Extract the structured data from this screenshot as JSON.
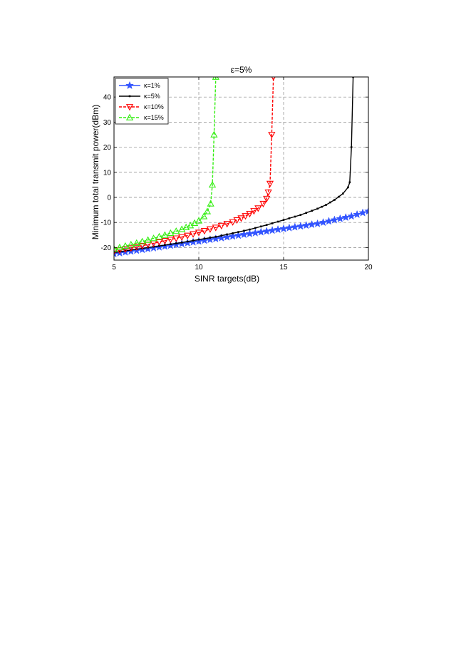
{
  "chart_data": {
    "type": "line",
    "title": "ε=5%",
    "xlabel": "SINR targets(dB)",
    "ylabel": "Minimum total transmit power(dBm)",
    "xlim": [
      5,
      20
    ],
    "ylim": [
      -25,
      48
    ],
    "xticks": [
      5,
      10,
      15,
      20
    ],
    "yticks": [
      -20,
      -10,
      0,
      10,
      20,
      30,
      40
    ],
    "grid": true,
    "legend_position": "top-left",
    "series": [
      {
        "name": "κ=1%",
        "color": "#3355ff",
        "linestyle": "solid",
        "marker": "star",
        "x": [
          5,
          6,
          7,
          8,
          9,
          10,
          11,
          12,
          13,
          14,
          15,
          16,
          17,
          18,
          19,
          20
        ],
        "y": [
          -22.5,
          -21.5,
          -20.5,
          -19.5,
          -18.5,
          -17.5,
          -16.5,
          -15.5,
          -14.5,
          -13.5,
          -12.5,
          -11.5,
          -10.5,
          -9.0,
          -7.5,
          -5.5
        ]
      },
      {
        "name": "κ=5%",
        "color": "#000000",
        "linestyle": "solid",
        "marker": "square",
        "x": [
          5,
          6,
          7,
          8,
          9,
          10,
          11,
          12,
          13,
          14,
          15,
          16,
          17,
          17.5,
          18,
          18.5,
          18.8,
          18.9,
          19.0,
          19.1
        ],
        "y": [
          -22.0,
          -21.0,
          -20.0,
          -19.0,
          -18.0,
          -16.8,
          -15.7,
          -14.3,
          -12.8,
          -11.0,
          -9.0,
          -7.0,
          -4.5,
          -3.0,
          -1.0,
          1.5,
          4.0,
          6.0,
          20.0,
          48.0
        ]
      },
      {
        "name": "κ=10%",
        "color": "#ff0000",
        "linestyle": "dashed",
        "marker": "triangle-down",
        "x": [
          5,
          6,
          7,
          8,
          9,
          10,
          11,
          12,
          12.5,
          13,
          13.5,
          13.8,
          14.0,
          14.1,
          14.2,
          14.3,
          14.4
        ],
        "y": [
          -21.5,
          -20.2,
          -18.8,
          -17.3,
          -15.8,
          -14.0,
          -12.0,
          -9.8,
          -8.3,
          -6.5,
          -4.3,
          -2.5,
          -0.5,
          2.0,
          5.5,
          25.0,
          48.0
        ]
      },
      {
        "name": "κ=15%",
        "color": "#33ee11",
        "linestyle": "dashed",
        "marker": "triangle-up",
        "x": [
          5,
          6,
          7,
          8,
          9,
          9.5,
          10,
          10.3,
          10.5,
          10.7,
          10.8,
          10.9,
          11.0
        ],
        "y": [
          -20.5,
          -18.8,
          -17.0,
          -15.0,
          -12.7,
          -11.2,
          -9.3,
          -7.6,
          -5.6,
          -2.5,
          5.0,
          25.0,
          48.0
        ]
      }
    ]
  }
}
